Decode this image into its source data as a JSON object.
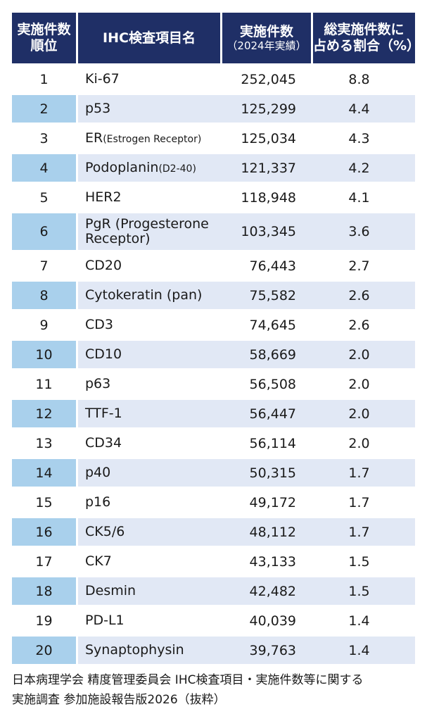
{
  "table": {
    "headers": {
      "rank": [
        "実施件数",
        "順位"
      ],
      "name": "IHC検査項目名",
      "count": [
        "実施件数",
        "（2024年実績）"
      ],
      "pct": [
        "総実施件数に",
        "占める割合（%）"
      ]
    },
    "rows": [
      {
        "rank": "1",
        "name": "Ki-67",
        "note": "",
        "count": "252,045",
        "pct": "8.8"
      },
      {
        "rank": "2",
        "name": "p53",
        "note": "",
        "count": "125,299",
        "pct": "4.4"
      },
      {
        "rank": "3",
        "name": "ER",
        "note": "(Estrogen Receptor)",
        "count": "125,034",
        "pct": "4.3"
      },
      {
        "rank": "4",
        "name": "Podoplanin",
        "note": "(D2-40)",
        "count": "121,337",
        "pct": "4.2"
      },
      {
        "rank": "5",
        "name": "HER2",
        "note": "",
        "count": "118,948",
        "pct": "4.1"
      },
      {
        "rank": "6",
        "name": "PgR (Progesterone Receptor)",
        "note": "",
        "count": "103,345",
        "pct": "3.6"
      },
      {
        "rank": "7",
        "name": "CD20",
        "note": "",
        "count": "76,443",
        "pct": "2.7"
      },
      {
        "rank": "8",
        "name": "Cytokeratin (pan)",
        "note": "",
        "count": "75,582",
        "pct": "2.6"
      },
      {
        "rank": "9",
        "name": "CD3",
        "note": "",
        "count": "74,645",
        "pct": "2.6"
      },
      {
        "rank": "10",
        "name": "CD10",
        "note": "",
        "count": "58,669",
        "pct": "2.0"
      },
      {
        "rank": "11",
        "name": "p63",
        "note": "",
        "count": "56,508",
        "pct": "2.0"
      },
      {
        "rank": "12",
        "name": "TTF-1",
        "note": "",
        "count": "56,447",
        "pct": "2.0"
      },
      {
        "rank": "13",
        "name": "CD34",
        "note": "",
        "count": "56,114",
        "pct": "2.0"
      },
      {
        "rank": "14",
        "name": "p40",
        "note": "",
        "count": "50,315",
        "pct": "1.7"
      },
      {
        "rank": "15",
        "name": "p16",
        "note": "",
        "count": "49,172",
        "pct": "1.7"
      },
      {
        "rank": "16",
        "name": "CK5/6",
        "note": "",
        "count": "48,112",
        "pct": "1.7"
      },
      {
        "rank": "17",
        "name": "CK7",
        "note": "",
        "count": "43,133",
        "pct": "1.5"
      },
      {
        "rank": "18",
        "name": "Desmin",
        "note": "",
        "count": "42,482",
        "pct": "1.5"
      },
      {
        "rank": "19",
        "name": "PD-L1",
        "note": "",
        "count": "40,039",
        "pct": "1.4"
      },
      {
        "rank": "20",
        "name": "Synaptophysin",
        "note": "",
        "count": "39,763",
        "pct": "1.4"
      }
    ]
  },
  "source": [
    "日本病理学会 精度管理委員会 IHC検査項目・実施件数等に関する",
    "実施調査 参加施設報告版2026（抜粋）"
  ],
  "colors": {
    "header_bg": "#1f2f66",
    "rank_even_bg": "#a9d0ec",
    "row_even_bg": "#e1e8f5"
  }
}
